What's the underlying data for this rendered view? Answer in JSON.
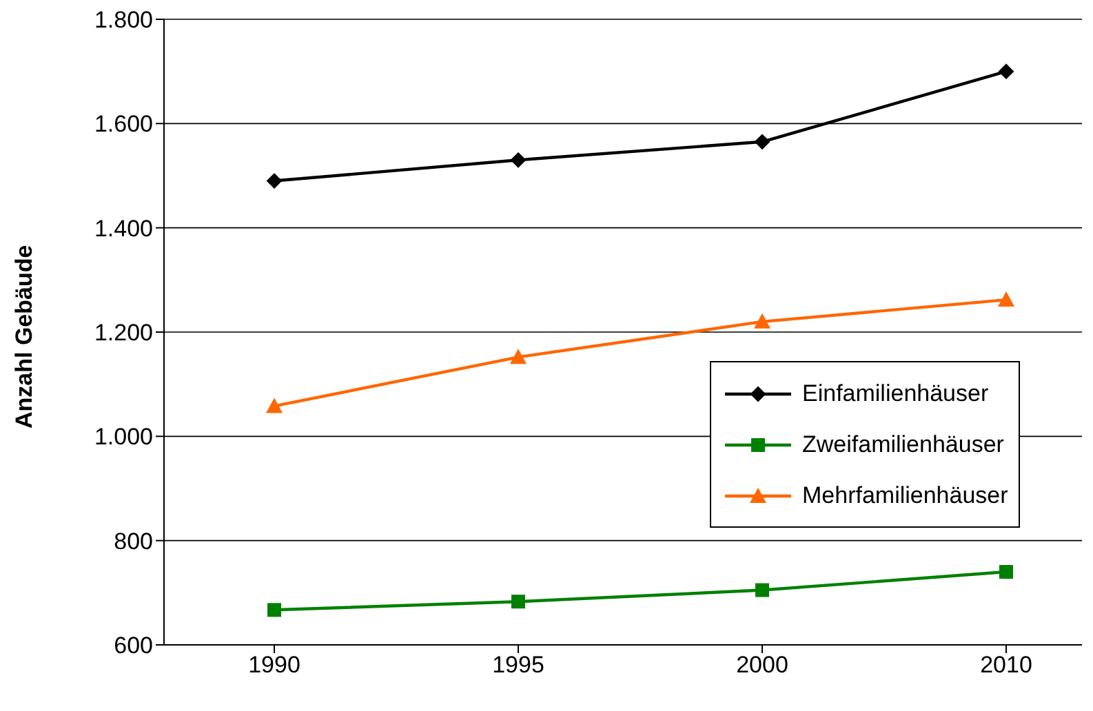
{
  "chart_data": {
    "type": "line",
    "ylabel": "Anzahl Gebäude",
    "categories": [
      "1990",
      "1995",
      "2000",
      "2010"
    ],
    "series": [
      {
        "name": "Einfamilienhäuser",
        "color": "#000000",
        "marker": "diamond",
        "values": [
          1490,
          1530,
          1565,
          1700
        ]
      },
      {
        "name": "Zweifamilienhäuser",
        "color": "#008000",
        "marker": "square",
        "values": [
          667,
          683,
          705,
          740
        ]
      },
      {
        "name": "Mehrfamilienhäuser",
        "color": "#ff6600",
        "marker": "triangle",
        "values": [
          1058,
          1152,
          1220,
          1262
        ]
      }
    ],
    "ylim": [
      600,
      1800
    ],
    "yticks": [
      600,
      800,
      {
        "value": 1000,
        "label": "1.000"
      },
      {
        "value": 1200,
        "label": "1.200"
      },
      {
        "value": 1400,
        "label": "1.400"
      },
      {
        "value": 1600,
        "label": "1.600"
      },
      {
        "value": 1800,
        "label": "1.800"
      }
    ],
    "grid": "y",
    "legend": "right",
    "line_style": "solid"
  }
}
